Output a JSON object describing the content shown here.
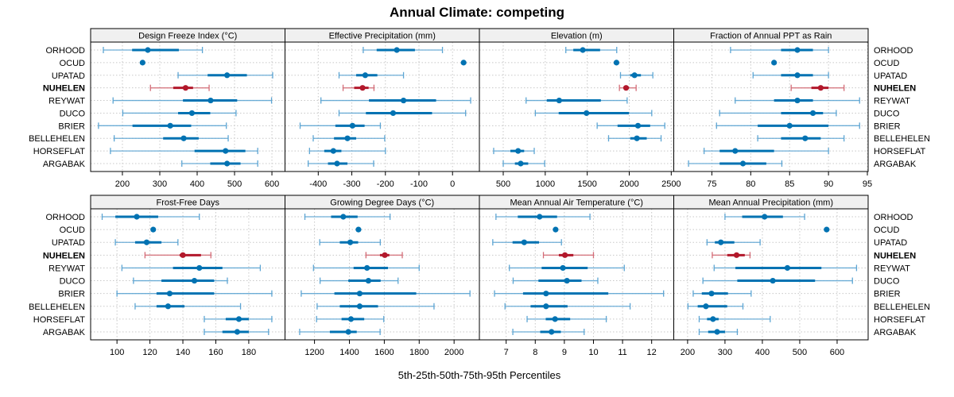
{
  "chart_data": {
    "type": "scatter",
    "subtype": "percentile-interval-dotplot",
    "title": "Annual Climate: competing",
    "xlabel": "5th-25th-50th-75th-95th Percentiles",
    "percentiles": [
      "5th",
      "25th",
      "50th",
      "75th",
      "95th"
    ],
    "rows": [
      "ORHOOD",
      "OCUD",
      "UPATAD",
      "NUHELEN",
      "REYWAT",
      "DUCO",
      "BRIER",
      "BELLEHELEN",
      "HORSEFLAT",
      "ARGABAK"
    ],
    "focal_row": "NUHELEN",
    "colors": {
      "normal": "#0072B2",
      "normal_light": "#5DA5D3",
      "focal": "#B2182B",
      "focal_light": "#D36B76",
      "strip_bg": "#F0F0F0",
      "grid": "#C8C8C8"
    },
    "grid": true,
    "panels": [
      {
        "title": "Design Freeze Index (°C)",
        "xlim": [
          115,
          635
        ],
        "ticks": [
          200,
          300,
          400,
          500,
          600
        ],
        "data": [
          [
            149,
            226,
            268,
            351,
            414
          ],
          [
            254,
            254,
            254,
            254,
            254
          ],
          [
            349,
            428,
            480,
            533,
            602
          ],
          [
            275,
            336,
            369,
            389,
            432
          ],
          [
            175,
            362,
            436,
            507,
            599
          ],
          [
            201,
            349,
            386,
            435,
            504
          ],
          [
            136,
            227,
            328,
            384,
            478
          ],
          [
            178,
            309,
            364,
            404,
            483
          ],
          [
            168,
            393,
            476,
            529,
            562
          ],
          [
            359,
            435,
            480,
            516,
            562
          ]
        ]
      },
      {
        "title": "Effective Precipitation (mm)",
        "xlim": [
          -499,
          80
        ],
        "ticks": [
          -400,
          -300,
          -200,
          -100,
          0
        ],
        "data": [
          [
            -266,
            -226,
            -166,
            -112,
            -30
          ],
          [
            33,
            33,
            33,
            33,
            33
          ],
          [
            -338,
            -287,
            -260,
            -224,
            -146
          ],
          [
            -326,
            -293,
            -268,
            -250,
            -234
          ],
          [
            -392,
            -249,
            -146,
            -49,
            54
          ],
          [
            -338,
            -258,
            -177,
            -61,
            39
          ],
          [
            -454,
            -349,
            -298,
            -262,
            -215
          ],
          [
            -415,
            -353,
            -313,
            -287,
            -202
          ],
          [
            -426,
            -382,
            -355,
            -331,
            -200
          ],
          [
            -430,
            -371,
            -344,
            -313,
            -235
          ]
        ]
      },
      {
        "title": "Elevation (m)",
        "xlim": [
          216,
          2530
        ],
        "ticks": [
          500,
          1000,
          1500,
          2000,
          2500
        ],
        "data": [
          [
            1245,
            1334,
            1447,
            1653,
            1851
          ],
          [
            1848,
            1848,
            1848,
            1848,
            1848
          ],
          [
            1896,
            2012,
            2063,
            2139,
            2281
          ],
          [
            1883,
            1934,
            1962,
            1997,
            2082
          ],
          [
            772,
            1018,
            1166,
            1662,
            1975
          ],
          [
            882,
            1160,
            1491,
            1997,
            2268
          ],
          [
            1618,
            1861,
            2104,
            2249,
            2423
          ],
          [
            1754,
            2012,
            2091,
            2208,
            2379
          ],
          [
            386,
            585,
            677,
            749,
            869
          ],
          [
            500,
            639,
            708,
            797,
            993
          ]
        ]
      },
      {
        "title": "Fraction of Annual PPT as Rain",
        "xlim": [
          70.1,
          95.1
        ],
        "ticks": [
          75,
          80,
          85,
          90,
          95
        ],
        "data": [
          [
            77.4,
            83.9,
            86.0,
            88.0,
            90.0
          ],
          [
            83.0,
            83.0,
            83.0,
            83.0,
            83.0
          ],
          [
            80.3,
            83.9,
            86.0,
            88.0,
            90.0
          ],
          [
            85.2,
            87.8,
            89.0,
            90.0,
            92.0
          ],
          [
            78.0,
            83.0,
            86.0,
            88.0,
            94.0
          ],
          [
            76.0,
            83.9,
            88.0,
            89.3,
            91.0
          ],
          [
            75.6,
            80.9,
            85.0,
            90.0,
            94.0
          ],
          [
            80.9,
            83.9,
            87.0,
            89.0,
            92.0
          ],
          [
            74.0,
            76.0,
            78.0,
            83.0,
            90.0
          ],
          [
            72.0,
            76.0,
            79.0,
            82.0,
            84.0
          ]
        ]
      },
      {
        "title": "Frost-Free Days",
        "xlim": [
          84,
          202
        ],
        "ticks": [
          100,
          120,
          140,
          160,
          180
        ],
        "data": [
          [
            91,
            99,
            112,
            125,
            150
          ],
          [
            122,
            122,
            122,
            122,
            122
          ],
          [
            99,
            111,
            118,
            127,
            137
          ],
          [
            117,
            138,
            140,
            151,
            157
          ],
          [
            103,
            134,
            150,
            164,
            187
          ],
          [
            110,
            127,
            147,
            159,
            167
          ],
          [
            100,
            124,
            132,
            159,
            194
          ],
          [
            111,
            124,
            131,
            141,
            175
          ],
          [
            153,
            166,
            174,
            180,
            194
          ],
          [
            153,
            164,
            173,
            180,
            192
          ]
        ]
      },
      {
        "title": "Growing Degree Days (°C)",
        "xlim": [
          1031,
          2145
        ],
        "ticks": [
          1200,
          1400,
          1600,
          1800,
          2000
        ],
        "data": [
          [
            1145,
            1295,
            1365,
            1447,
            1633
          ],
          [
            1452,
            1452,
            1452,
            1452,
            1452
          ],
          [
            1230,
            1345,
            1405,
            1450,
            1577
          ],
          [
            1495,
            1575,
            1603,
            1629,
            1703
          ],
          [
            1194,
            1424,
            1501,
            1621,
            1800
          ],
          [
            1232,
            1394,
            1509,
            1579,
            1679
          ],
          [
            1124,
            1314,
            1459,
            1783,
            2091
          ],
          [
            1215,
            1345,
            1459,
            1564,
            1885
          ],
          [
            1212,
            1355,
            1409,
            1485,
            1597
          ],
          [
            1115,
            1288,
            1394,
            1442,
            1576
          ]
        ]
      },
      {
        "title": "Mean Annual Air Temperature (°C)",
        "xlim": [
          6.08,
          12.76
        ],
        "ticks": [
          7,
          8,
          9,
          10,
          11,
          12
        ],
        "data": [
          [
            6.65,
            7.4,
            8.15,
            8.75,
            9.88
          ],
          [
            8.7,
            8.7,
            8.7,
            8.7,
            8.7
          ],
          [
            6.54,
            7.22,
            7.62,
            8.13,
            8.9
          ],
          [
            8.28,
            8.81,
            9.02,
            9.31,
            10.0
          ],
          [
            7.11,
            8.22,
            8.95,
            9.8,
            11.06
          ],
          [
            7.24,
            8.11,
            9.09,
            9.59,
            10.15
          ],
          [
            6.6,
            7.58,
            8.37,
            10.51,
            12.41
          ],
          [
            6.96,
            7.84,
            8.37,
            9.11,
            11.26
          ],
          [
            7.72,
            8.36,
            8.68,
            9.2,
            10.44
          ],
          [
            7.23,
            8.17,
            8.56,
            8.88,
            9.68
          ]
        ]
      },
      {
        "title": "Mean Annual Precipitation (mm)",
        "xlim": [
          163,
          683
        ],
        "ticks": [
          200,
          300,
          400,
          500,
          600
        ],
        "data": [
          [
            300,
            346,
            406,
            455,
            513
          ],
          [
            572,
            572,
            572,
            572,
            572
          ],
          [
            252,
            273,
            289,
            325,
            394
          ],
          [
            266,
            306,
            331,
            353,
            367
          ],
          [
            271,
            328,
            467,
            558,
            652
          ],
          [
            241,
            333,
            428,
            541,
            641
          ],
          [
            215,
            238,
            264,
            308,
            370
          ],
          [
            201,
            227,
            249,
            306,
            348
          ],
          [
            231,
            252,
            268,
            283,
            421
          ],
          [
            231,
            255,
            279,
            300,
            333
          ]
        ]
      }
    ]
  }
}
